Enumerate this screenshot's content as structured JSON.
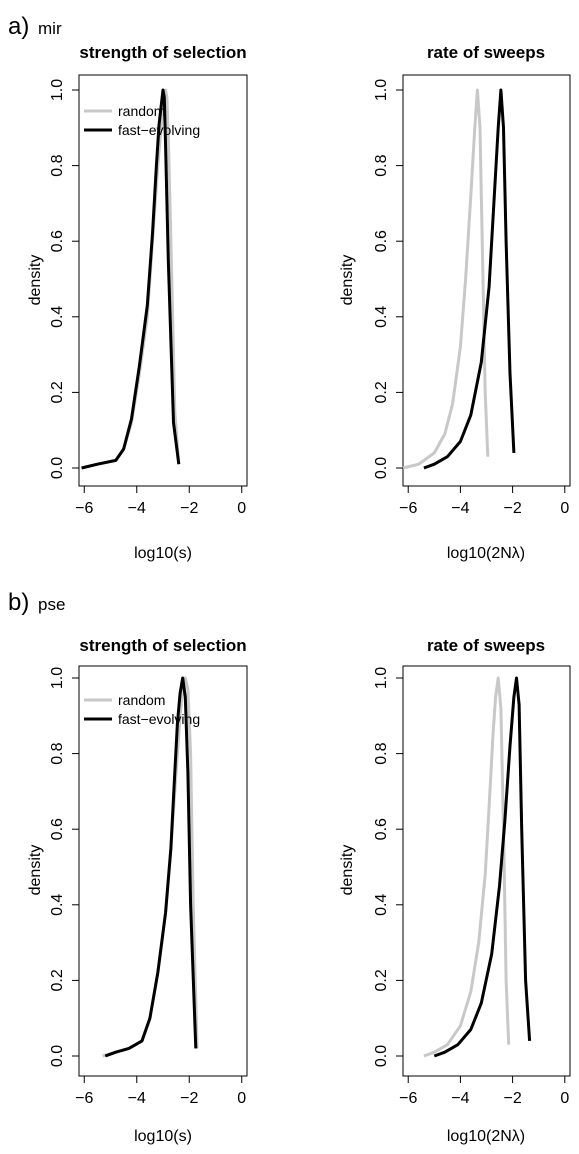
{
  "figure": {
    "panels": [
      {
        "letter": "a)",
        "subtitle": "mir"
      },
      {
        "letter": "b)",
        "subtitle": "pse"
      }
    ]
  },
  "colors": {
    "random": "#c8c8c8",
    "fast_evolving": "#000000"
  },
  "chart_data": [
    {
      "type": "line",
      "title": "strength of selection",
      "xlabel": "log10(s)",
      "ylabel": "density",
      "xlim": [
        -6.2,
        0.2
      ],
      "ylim": [
        0,
        1.0
      ],
      "xticks": [
        -6,
        -4,
        -2,
        0
      ],
      "yticks": [
        0.0,
        0.2,
        0.4,
        0.6,
        0.8,
        1.0
      ],
      "xtick_labels": [
        "−6",
        "−4",
        "−2",
        "0"
      ],
      "ytick_labels": [
        "0.0",
        "0.2",
        "0.4",
        "0.6",
        "0.8",
        "1.0"
      ],
      "legend": {
        "placement": "top-left",
        "entries": [
          "random",
          "fast−evolving"
        ]
      },
      "series": [
        {
          "name": "random",
          "x": [
            -6.1,
            -5.5,
            -4.8,
            -4.5,
            -4.2,
            -3.9,
            -3.6,
            -3.4,
            -3.2,
            -3.05,
            -2.95,
            -2.9,
            -2.85,
            -2.8,
            -2.7,
            -2.55,
            -2.4
          ],
          "y": [
            0.0,
            0.01,
            0.02,
            0.05,
            0.12,
            0.25,
            0.4,
            0.6,
            0.8,
            0.92,
            0.98,
            1.0,
            0.98,
            0.88,
            0.6,
            0.15,
            0.01
          ]
        },
        {
          "name": "fast−evolving",
          "x": [
            -6.1,
            -5.5,
            -4.8,
            -4.5,
            -4.2,
            -3.9,
            -3.6,
            -3.4,
            -3.25,
            -3.15,
            -3.05,
            -3.0,
            -2.95,
            -2.9,
            -2.8,
            -2.6,
            -2.4
          ],
          "y": [
            0.0,
            0.01,
            0.02,
            0.05,
            0.13,
            0.27,
            0.43,
            0.62,
            0.8,
            0.91,
            0.97,
            1.0,
            0.98,
            0.85,
            0.55,
            0.12,
            0.01
          ]
        }
      ]
    },
    {
      "type": "line",
      "title": "rate of sweeps",
      "xlabel": "log10(2Nλ)",
      "ylabel": "density",
      "xlim": [
        -6.2,
        0.2
      ],
      "ylim": [
        0,
        1.0
      ],
      "xticks": [
        -6,
        -4,
        -2,
        0
      ],
      "yticks": [
        0.0,
        0.2,
        0.4,
        0.6,
        0.8,
        1.0
      ],
      "xtick_labels": [
        "−6",
        "−4",
        "−2",
        "0"
      ],
      "ytick_labels": [
        "0.0",
        "0.2",
        "0.4",
        "0.6",
        "0.8",
        "1.0"
      ],
      "series": [
        {
          "name": "random",
          "x": [
            -6.2,
            -5.6,
            -5.0,
            -4.6,
            -4.3,
            -4.0,
            -3.8,
            -3.6,
            -3.45,
            -3.35,
            -3.25,
            -3.15,
            -3.05,
            -2.95
          ],
          "y": [
            0.0,
            0.01,
            0.04,
            0.09,
            0.17,
            0.32,
            0.5,
            0.72,
            0.9,
            1.0,
            0.9,
            0.55,
            0.2,
            0.03
          ]
        },
        {
          "name": "fast−evolving",
          "x": [
            -5.4,
            -5.0,
            -4.5,
            -4.0,
            -3.6,
            -3.2,
            -2.9,
            -2.7,
            -2.55,
            -2.45,
            -2.35,
            -2.25,
            -2.1,
            -1.95
          ],
          "y": [
            0.0,
            0.01,
            0.03,
            0.07,
            0.14,
            0.28,
            0.48,
            0.72,
            0.9,
            1.0,
            0.9,
            0.6,
            0.25,
            0.04
          ]
        }
      ]
    },
    {
      "type": "line",
      "title": "strength of selection",
      "xlabel": "log10(s)",
      "ylabel": "density",
      "xlim": [
        -6.2,
        0.2
      ],
      "ylim": [
        0,
        1.0
      ],
      "xticks": [
        -6,
        -4,
        -2,
        0
      ],
      "yticks": [
        0.0,
        0.2,
        0.4,
        0.6,
        0.8,
        1.0
      ],
      "xtick_labels": [
        "−6",
        "−4",
        "−2",
        "0"
      ],
      "ytick_labels": [
        "0.0",
        "0.2",
        "0.4",
        "0.6",
        "0.8",
        "1.0"
      ],
      "legend": {
        "placement": "top-left",
        "entries": [
          "random",
          "fast−evolving"
        ]
      },
      "series": [
        {
          "name": "random",
          "x": [
            -5.3,
            -4.8,
            -4.3,
            -3.8,
            -3.5,
            -3.2,
            -2.9,
            -2.7,
            -2.5,
            -2.35,
            -2.25,
            -2.15,
            -2.05,
            -1.95,
            -1.85,
            -1.7
          ],
          "y": [
            0.0,
            0.01,
            0.02,
            0.04,
            0.1,
            0.22,
            0.38,
            0.55,
            0.75,
            0.9,
            0.97,
            1.0,
            0.97,
            0.8,
            0.4,
            0.02
          ]
        },
        {
          "name": "fast−evolving",
          "x": [
            -5.2,
            -4.8,
            -4.3,
            -3.8,
            -3.5,
            -3.2,
            -2.9,
            -2.7,
            -2.55,
            -2.45,
            -2.35,
            -2.25,
            -2.15,
            -2.05,
            -1.95,
            -1.75
          ],
          "y": [
            0.0,
            0.01,
            0.02,
            0.04,
            0.1,
            0.22,
            0.38,
            0.55,
            0.75,
            0.88,
            0.96,
            1.0,
            0.95,
            0.75,
            0.4,
            0.02
          ]
        }
      ]
    },
    {
      "type": "line",
      "title": "rate of sweeps",
      "xlabel": "log10(2Nλ)",
      "ylabel": "density",
      "xlim": [
        -6.2,
        0.2
      ],
      "ylim": [
        0,
        1.0
      ],
      "xticks": [
        -6,
        -4,
        -2,
        0
      ],
      "yticks": [
        0.0,
        0.2,
        0.4,
        0.6,
        0.8,
        1.0
      ],
      "xtick_labels": [
        "−6",
        "−4",
        "−2",
        "0"
      ],
      "ytick_labels": [
        "0.0",
        "0.2",
        "0.4",
        "0.6",
        "0.8",
        "1.0"
      ],
      "series": [
        {
          "name": "random",
          "x": [
            -5.4,
            -5.0,
            -4.5,
            -4.0,
            -3.6,
            -3.3,
            -3.05,
            -2.9,
            -2.75,
            -2.65,
            -2.55,
            -2.45,
            -2.35,
            -2.25,
            -2.15
          ],
          "y": [
            0.0,
            0.01,
            0.03,
            0.08,
            0.17,
            0.3,
            0.48,
            0.66,
            0.85,
            0.95,
            1.0,
            0.92,
            0.6,
            0.2,
            0.03
          ]
        },
        {
          "name": "fast−evolving",
          "x": [
            -5.0,
            -4.6,
            -4.1,
            -3.6,
            -3.2,
            -2.8,
            -2.5,
            -2.3,
            -2.1,
            -1.95,
            -1.85,
            -1.75,
            -1.65,
            -1.5,
            -1.35
          ],
          "y": [
            0.0,
            0.01,
            0.03,
            0.07,
            0.14,
            0.27,
            0.45,
            0.62,
            0.82,
            0.95,
            1.0,
            0.93,
            0.6,
            0.2,
            0.04
          ]
        }
      ]
    }
  ]
}
